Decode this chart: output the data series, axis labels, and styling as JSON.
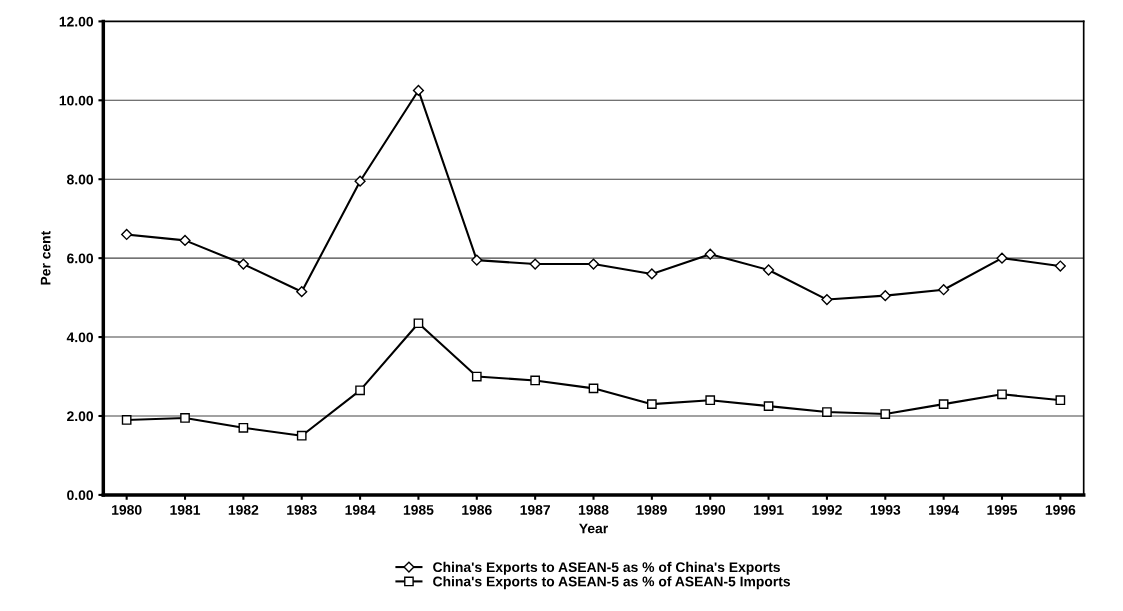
{
  "chart_data": {
    "type": "line",
    "xlabel": "Year",
    "ylabel": "Per cent",
    "categories": [
      "1980",
      "1981",
      "1982",
      "1983",
      "1984",
      "1985",
      "1986",
      "1987",
      "1988",
      "1989",
      "1990",
      "1991",
      "1992",
      "1993",
      "1994",
      "1995",
      "1996"
    ],
    "series": [
      {
        "name": "China's Exports to ASEAN-5 as % of China's Exports",
        "color": "#000000",
        "marker": "diamond",
        "values": [
          6.6,
          6.45,
          5.85,
          5.15,
          7.95,
          10.25,
          5.95,
          5.85,
          5.85,
          5.6,
          6.1,
          5.7,
          4.95,
          5.05,
          5.2,
          6.0,
          5.8
        ]
      },
      {
        "name": "China's Exports to ASEAN-5 as % of ASEAN-5 Imports",
        "color": "#000000",
        "marker": "square",
        "values": [
          1.9,
          1.95,
          1.7,
          1.5,
          2.65,
          4.35,
          3.0,
          2.9,
          2.7,
          2.3,
          2.4,
          2.25,
          2.1,
          2.05,
          2.3,
          2.55,
          2.4
        ]
      }
    ],
    "ylim": [
      0,
      12
    ],
    "yticks": [
      {
        "value": 0,
        "label": "0.00"
      },
      {
        "value": 2,
        "label": "2.00"
      },
      {
        "value": 4,
        "label": "4.00"
      },
      {
        "value": 6,
        "label": "6.00"
      },
      {
        "value": 8,
        "label": "8.00"
      },
      {
        "value": 10,
        "label": "10.00"
      },
      {
        "value": 12,
        "label": "12.00"
      }
    ],
    "grid": "y",
    "legend": "bottom",
    "line_style": "solid"
  }
}
